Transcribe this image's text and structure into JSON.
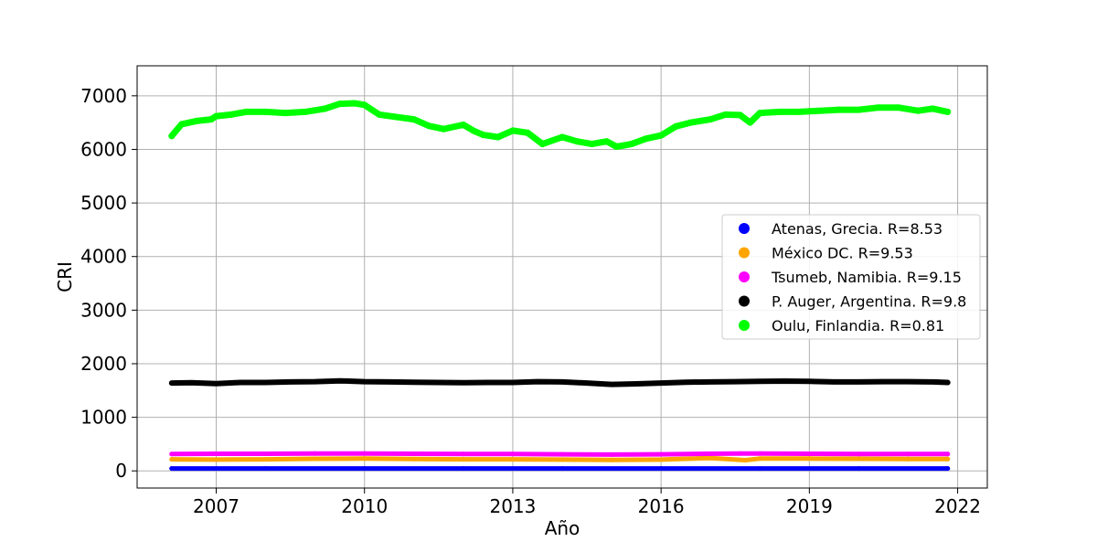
{
  "chart_data": {
    "type": "scatter",
    "xlabel": "Año",
    "ylabel": "CRI",
    "xlim": [
      2005.4,
      2022.6
    ],
    "ylim": [
      -320,
      7560
    ],
    "x_ticks": [
      2007,
      2010,
      2013,
      2016,
      2019,
      2022
    ],
    "y_ticks": [
      0,
      1000,
      2000,
      3000,
      4000,
      5000,
      6000,
      7000
    ],
    "grid": true,
    "legend_position": "center-right",
    "series": [
      {
        "name": "Atenas, Grecia. R=8.53",
        "color": "#0000ff",
        "x": [
          2006.1,
          2008,
          2010,
          2012,
          2014,
          2016,
          2018,
          2020,
          2021.8
        ],
        "y": [
          45,
          45,
          45,
          45,
          45,
          45,
          45,
          45,
          45
        ]
      },
      {
        "name": "México DC. R=9.53",
        "color": "#ffa500",
        "x": [
          2006.1,
          2007,
          2008,
          2009,
          2010,
          2011,
          2012,
          2013,
          2014,
          2015,
          2016,
          2017,
          2017.7,
          2018,
          2019,
          2020,
          2021,
          2021.8
        ],
        "y": [
          215,
          210,
          215,
          225,
          230,
          220,
          215,
          215,
          210,
          205,
          210,
          240,
          200,
          230,
          230,
          225,
          220,
          220
        ]
      },
      {
        "name": "Tsumeb, Namibia. R=9.15",
        "color": "#ff00ff",
        "x": [
          2006.1,
          2007,
          2008,
          2009,
          2010,
          2011,
          2012,
          2013,
          2014,
          2015,
          2016,
          2016.9,
          2017.6,
          2018,
          2019,
          2020,
          2021,
          2021.8
        ],
        "y": [
          315,
          320,
          320,
          325,
          325,
          320,
          315,
          315,
          310,
          305,
          310,
          320,
          325,
          325,
          320,
          315,
          315,
          315
        ]
      },
      {
        "name": "P. Auger, Argentina. R=9.8",
        "color": "#000000",
        "x": [
          2006.1,
          2006.5,
          2007,
          2007.5,
          2008,
          2008.5,
          2009,
          2009.5,
          2010,
          2010.5,
          2011,
          2011.5,
          2012,
          2012.5,
          2013,
          2013.5,
          2014,
          2014.5,
          2015,
          2015.5,
          2016,
          2016.5,
          2017,
          2017.5,
          2018,
          2018.5,
          2019,
          2019.5,
          2020,
          2020.5,
          2021,
          2021.5,
          2021.8
        ],
        "y": [
          1640,
          1645,
          1630,
          1650,
          1650,
          1660,
          1665,
          1680,
          1665,
          1660,
          1655,
          1650,
          1645,
          1650,
          1650,
          1665,
          1660,
          1640,
          1615,
          1625,
          1640,
          1655,
          1660,
          1665,
          1670,
          1675,
          1670,
          1660,
          1660,
          1665,
          1665,
          1660,
          1650
        ]
      },
      {
        "name": "Oulu, Finlandia. R=0.81",
        "color": "#00ff00",
        "x": [
          2006.1,
          2006.3,
          2006.6,
          2006.9,
          2007,
          2007.3,
          2007.6,
          2008,
          2008.4,
          2008.8,
          2009.2,
          2009.5,
          2009.8,
          2010,
          2010.3,
          2010.6,
          2011,
          2011.3,
          2011.6,
          2012,
          2012.2,
          2012.4,
          2012.7,
          2013,
          2013.3,
          2013.6,
          2014,
          2014.3,
          2014.6,
          2014.9,
          2015.1,
          2015.4,
          2015.7,
          2016,
          2016.3,
          2016.6,
          2017,
          2017.3,
          2017.6,
          2017.8,
          2018,
          2018.4,
          2018.8,
          2019.2,
          2019.6,
          2020,
          2020.4,
          2020.8,
          2021.2,
          2021.5,
          2021.8
        ],
        "y": [
          6250,
          6470,
          6530,
          6560,
          6620,
          6650,
          6700,
          6700,
          6680,
          6700,
          6760,
          6850,
          6860,
          6830,
          6650,
          6610,
          6560,
          6440,
          6380,
          6460,
          6350,
          6270,
          6230,
          6350,
          6310,
          6100,
          6230,
          6150,
          6100,
          6150,
          6050,
          6100,
          6200,
          6260,
          6430,
          6500,
          6560,
          6650,
          6640,
          6500,
          6680,
          6700,
          6700,
          6720,
          6740,
          6740,
          6780,
          6780,
          6720,
          6760,
          6700
        ]
      }
    ]
  }
}
